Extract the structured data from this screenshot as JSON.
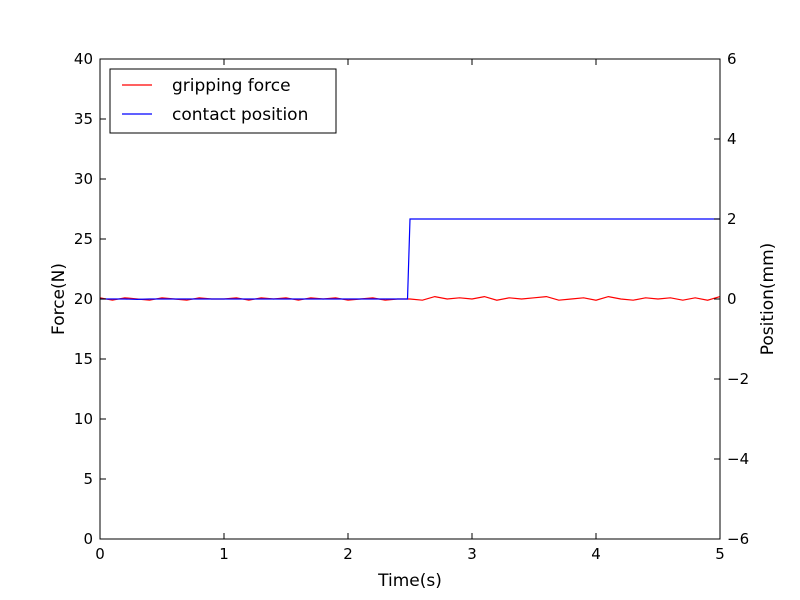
{
  "chart_data": {
    "type": "line",
    "title": "",
    "xlabel": "Time(s)",
    "ylabel_left": "Force(N)",
    "ylabel_right": "Position(mm)",
    "xlim": [
      0,
      5
    ],
    "ylim_left": [
      0,
      40
    ],
    "ylim_right": [
      -6,
      6
    ],
    "xticks": [
      0,
      1,
      2,
      3,
      4,
      5
    ],
    "yticks_left": [
      0,
      5,
      10,
      15,
      20,
      25,
      30,
      35,
      40
    ],
    "yticks_right": [
      -6,
      -4,
      -2,
      0,
      2,
      4,
      6
    ],
    "xtick_labels": [
      "0",
      "1",
      "2",
      "3",
      "4",
      "5"
    ],
    "ytick_left_labels": [
      "0",
      "5",
      "10",
      "15",
      "20",
      "25",
      "30",
      "35",
      "40"
    ],
    "ytick_right_labels": [
      "−6",
      "−4",
      "−2",
      "0",
      "2",
      "4",
      "6"
    ],
    "grid": false,
    "legend_position": "top-left",
    "series": [
      {
        "name": "gripping force",
        "axis": "left",
        "color": "#ff0000",
        "x": [
          0,
          0.1,
          0.2,
          0.3,
          0.4,
          0.5,
          0.6,
          0.7,
          0.8,
          0.9,
          1.0,
          1.1,
          1.2,
          1.3,
          1.4,
          1.5,
          1.6,
          1.7,
          1.8,
          1.9,
          2.0,
          2.1,
          2.2,
          2.3,
          2.4,
          2.5,
          2.6,
          2.7,
          2.8,
          2.9,
          3.0,
          3.1,
          3.2,
          3.3,
          3.4,
          3.5,
          3.6,
          3.7,
          3.8,
          3.9,
          4.0,
          4.1,
          4.2,
          4.3,
          4.4,
          4.5,
          4.6,
          4.7,
          4.8,
          4.9,
          5.0
        ],
        "y": [
          20.1,
          19.9,
          20.1,
          20.0,
          19.9,
          20.1,
          20.0,
          19.9,
          20.1,
          20.0,
          20.0,
          20.1,
          19.9,
          20.1,
          20.0,
          20.1,
          19.9,
          20.1,
          20.0,
          20.1,
          19.9,
          20.0,
          20.1,
          19.9,
          20.0,
          20.0,
          19.9,
          20.2,
          20.0,
          20.1,
          20.0,
          20.2,
          19.9,
          20.1,
          20.0,
          20.1,
          20.2,
          19.9,
          20.0,
          20.1,
          19.9,
          20.2,
          20.0,
          19.9,
          20.1,
          20.0,
          20.1,
          19.9,
          20.1,
          19.9,
          20.2
        ]
      },
      {
        "name": "contact position",
        "axis": "right",
        "color": "#0000ff",
        "x": [
          0,
          0.1,
          0.2,
          0.3,
          0.4,
          0.5,
          0.6,
          0.7,
          0.8,
          0.9,
          1.0,
          1.1,
          1.2,
          1.3,
          1.4,
          1.5,
          1.6,
          1.7,
          1.8,
          1.9,
          2.0,
          2.1,
          2.2,
          2.3,
          2.4,
          2.48,
          2.5,
          5.0
        ],
        "y": [
          0.0,
          0.0,
          0.0,
          -0.01,
          0.0,
          0.0,
          0.0,
          0.0,
          0.0,
          0.0,
          0.0,
          0.0,
          0.0,
          0.0,
          0.0,
          0.0,
          0.0,
          0.0,
          0.0,
          0.0,
          0.0,
          0.0,
          0.0,
          0.0,
          0.0,
          0.0,
          2.0,
          2.0
        ]
      }
    ]
  }
}
